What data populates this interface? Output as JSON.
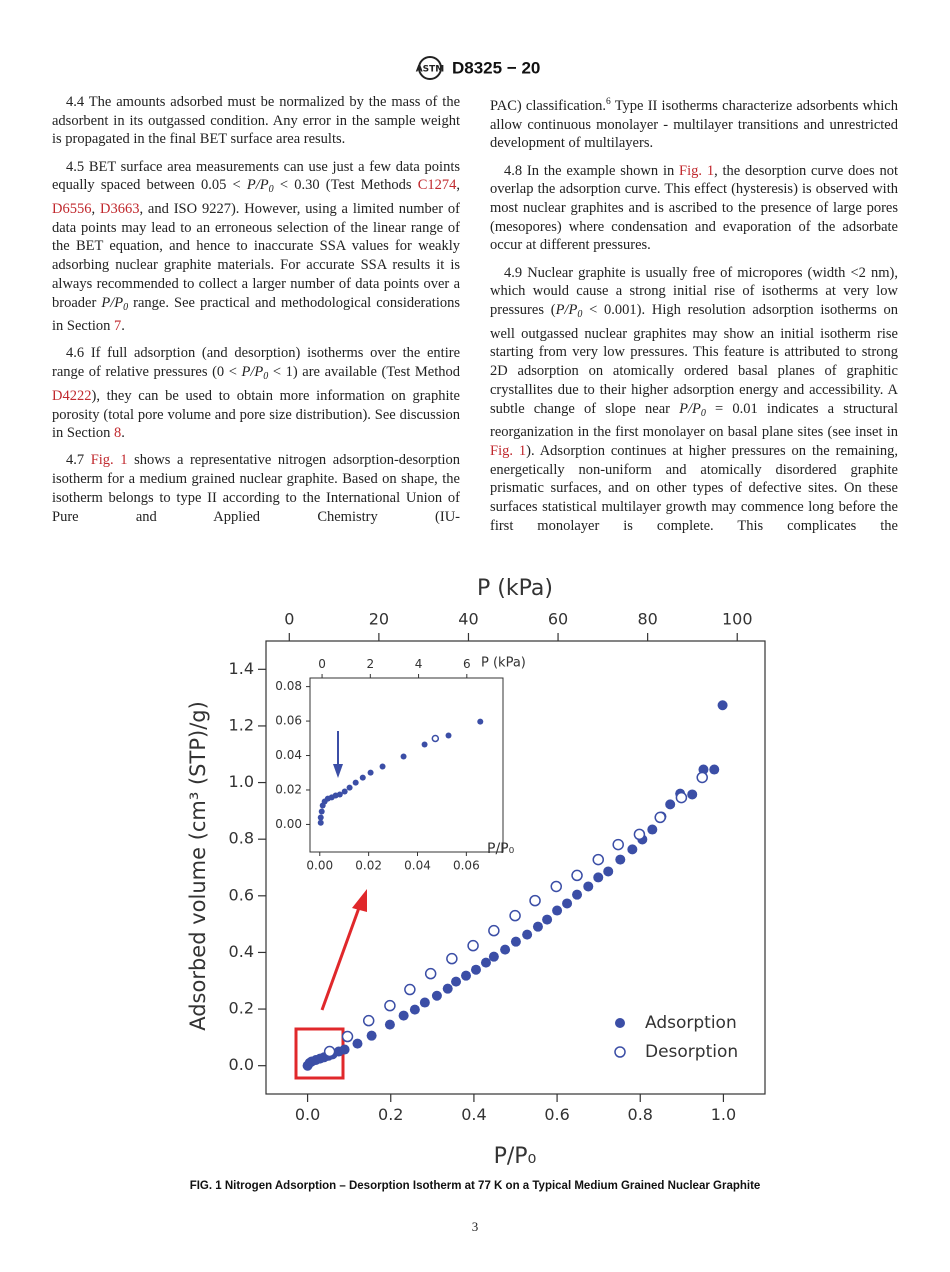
{
  "header": {
    "designation": "D8325 − 20"
  },
  "left_column": [
    [
      "4.4 The amounts adsorbed must be normalized by the mass of the adsorbent in its outgassed condition. Any error in the sample weight is propagated in the final BET surface area results."
    ],
    [
      "4.5 BET surface area measurements can use just a few data points equally spaced between 0.05 < ",
      {
        "italic": "P/P"
      },
      {
        "sub": "0"
      },
      " < 0.30 (Test Methods ",
      {
        "link": "C1274"
      },
      ", ",
      {
        "link": "D6556"
      },
      ", ",
      {
        "link": "D3663"
      },
      ", and ISO 9227). However, using a limited number of data points may lead to an erroneous selection of the linear range of the BET equation, and hence to inaccurate SSA values for weakly adsorbing nuclear graphite materials. For accurate SSA results it is always recommended to collect a larger number of data points over a broader ",
      {
        "italic": "P/P"
      },
      {
        "sub": "0"
      },
      " range. See practical and methodological considerations in Section ",
      {
        "link": "7"
      },
      "."
    ],
    [
      "4.6 If full adsorption (and desorption) isotherms over the entire range of relative pressures (0 < ",
      {
        "italic": "P/P"
      },
      {
        "sub": "0"
      },
      " < 1) are available (Test Method ",
      {
        "link": "D4222"
      },
      "), they can be used to obtain more information on graphite porosity (total pore volume and pore size distribution). See discussion in Section ",
      {
        "link": "8"
      },
      "."
    ],
    [
      "4.7 ",
      {
        "link": "Fig. 1"
      },
      " shows a representative nitrogen adsorption-desorption isotherm for a medium grained nuclear graphite. Based on shape, the isotherm belongs to type II according to the International Union of Pure and Applied Chemistry (IU-"
    ]
  ],
  "right_column": [
    [
      "PAC) classification.",
      {
        "sup": "6"
      },
      " Type II isotherms characterize adsorbents which allow continuous monolayer - multilayer transitions and unrestricted development of multilayers."
    ],
    [
      "4.8 In the example shown in ",
      {
        "link": "Fig. 1"
      },
      ", the desorption curve does not overlap the adsorption curve. This effect (hysteresis) is observed with most nuclear graphites and is ascribed to the presence of large pores (mesopores) where condensation and evaporation of the adsorbate occur at different pressures."
    ],
    [
      "4.9 Nuclear graphite is usually free of micropores (width <2 nm), which would cause a strong initial rise of isotherms at very low pressures (",
      {
        "italic": "P/P"
      },
      {
        "sub": "0"
      },
      " < 0.001). High resolution adsorption isotherms on well outgassed nuclear graphites may show an initial isotherm rise starting from very low pressures. This feature is attributed to strong 2D adsorption on atomically ordered basal planes of graphitic crystallites due to their higher adsorption energy and accessibility. A subtle change of slope near ",
      {
        "italic": "P/P"
      },
      {
        "sub": "0"
      },
      " = 0.01 indicates a structural reorganization in the first monolayer on basal plane sites (see inset in ",
      {
        "link": "Fig. 1"
      },
      "). Adsorption continues at higher pressures on the remaining, energetically non-uniform and atomically disordered graphite prismatic surfaces, and on other types of defective sites. On these surfaces statistical multilayer growth may commence long before the first monolayer is complete. This complicates the"
    ]
  ],
  "chart_data": {
    "type": "scatter",
    "x_label": "P/P₀",
    "y_label": "Adsorbed volume (cm³ (STP)/g)",
    "x2_label": "P (kPa)",
    "xlim": [
      -0.1,
      1.1
    ],
    "ylim": [
      -0.1,
      1.5
    ],
    "x2lim": [
      -5.2,
      106.2
    ],
    "xticks": [
      {
        "value": 0,
        "label": "0.0"
      },
      {
        "value": 0.2,
        "label": "0.2"
      },
      {
        "value": 0.4,
        "label": "0.4"
      },
      {
        "value": 0.6,
        "label": "0.6"
      },
      {
        "value": 0.8,
        "label": "0.8"
      },
      {
        "value": 1,
        "label": "1.0"
      }
    ],
    "yticks": [
      {
        "value": 0,
        "label": "0.0"
      },
      {
        "value": 0.2,
        "label": "0.2"
      },
      {
        "value": 0.4,
        "label": "0.4"
      },
      {
        "value": 0.6,
        "label": "0.6"
      },
      {
        "value": 0.8,
        "label": "0.8"
      },
      {
        "value": 1,
        "label": "1.0"
      },
      {
        "value": 1.2,
        "label": "1.2"
      },
      {
        "value": 1.4,
        "label": "1.4"
      }
    ],
    "x2ticks": [
      0,
      20,
      40,
      60,
      80,
      100
    ],
    "legend": "lower right",
    "series": [
      {
        "name": "Adsorption",
        "color": "#3b4ea6",
        "marker": "filled",
        "x": [
          0.0,
          0.005,
          0.01,
          0.02,
          0.03,
          0.04,
          0.05,
          0.06,
          0.075,
          0.089,
          0.12,
          0.154,
          0.198,
          0.231,
          0.258,
          0.282,
          0.311,
          0.337,
          0.357,
          0.381,
          0.405,
          0.429,
          0.448,
          0.475,
          0.501,
          0.528,
          0.554,
          0.576,
          0.6,
          0.624,
          0.648,
          0.675,
          0.699,
          0.723,
          0.752,
          0.781,
          0.805,
          0.829,
          0.851,
          0.872,
          0.896,
          0.925,
          0.952,
          0.978,
          0.998
        ],
        "values": [
          0.0,
          0.01,
          0.015,
          0.02,
          0.025,
          0.03,
          0.035,
          0.04,
          0.05,
          0.057,
          0.078,
          0.106,
          0.145,
          0.177,
          0.198,
          0.223,
          0.247,
          0.272,
          0.297,
          0.318,
          0.339,
          0.364,
          0.385,
          0.41,
          0.438,
          0.463,
          0.491,
          0.516,
          0.548,
          0.573,
          0.604,
          0.633,
          0.665,
          0.686,
          0.728,
          0.764,
          0.799,
          0.834,
          0.88,
          0.923,
          0.961,
          0.958,
          1.046,
          1.046,
          1.273
        ]
      },
      {
        "name": "Desorption",
        "color": "#3b4ea6",
        "marker": "open",
        "x": [
          0.053,
          0.096,
          0.147,
          0.198,
          0.246,
          0.296,
          0.347,
          0.398,
          0.448,
          0.499,
          0.547,
          0.598,
          0.648,
          0.699,
          0.747,
          0.798,
          0.848,
          0.899,
          0.949
        ],
        "values": [
          0.05,
          0.103,
          0.159,
          0.212,
          0.269,
          0.325,
          0.378,
          0.424,
          0.477,
          0.53,
          0.583,
          0.633,
          0.672,
          0.728,
          0.781,
          0.817,
          0.877,
          0.947,
          1.018
        ]
      }
    ],
    "inset": {
      "x_label": "P/P₀",
      "x2_label": "P (kPa)",
      "xlim": [
        -0.004,
        0.075
      ],
      "ylim": [
        -0.016,
        0.085
      ],
      "x2lim": [
        -0.5,
        7.5
      ],
      "xticks": [
        {
          "value": 0,
          "label": "0.00"
        },
        {
          "value": 0.02,
          "label": "0.02"
        },
        {
          "value": 0.04,
          "label": "0.04"
        },
        {
          "value": 0.06,
          "label": "0.06"
        }
      ],
      "yticks": [
        {
          "value": 0,
          "label": "0.00"
        },
        {
          "value": 0.02,
          "label": "0.02"
        },
        {
          "value": 0.04,
          "label": "0.04"
        },
        {
          "value": 0.06,
          "label": "0.06"
        },
        {
          "value": 0.08,
          "label": "0.08"
        }
      ],
      "x2ticks": [
        0,
        2,
        4,
        6
      ],
      "series": [
        {
          "color": "#3b4ea6",
          "marker": "filled",
          "x": [
            0.0004,
            0.0004,
            0.0008,
            0.0012,
            0.002,
            0.0033,
            0.0049,
            0.0065,
            0.0082,
            0.0102,
            0.0122,
            0.0147,
            0.0176,
            0.0208,
            0.0257,
            0.0343,
            0.0429,
            0.0527,
            0.0657
          ],
          "values": [
            0.001,
            0.004,
            0.0075,
            0.011,
            0.0133,
            0.015,
            0.0157,
            0.0168,
            0.0174,
            0.0191,
            0.0214,
            0.0243,
            0.0272,
            0.0301,
            0.0336,
            0.0394,
            0.0464,
            0.0516,
            0.0597
          ]
        },
        {
          "color": "#3b4ea6",
          "marker": "open",
          "x": [
            0.0473
          ],
          "values": [
            0.0499
          ]
        }
      ]
    }
  },
  "caption": "FIG. 1 Nitrogen Adsorption – Desorption Isotherm at 77 K on a Typical Medium Grained Nuclear Graphite",
  "page_number": "3"
}
